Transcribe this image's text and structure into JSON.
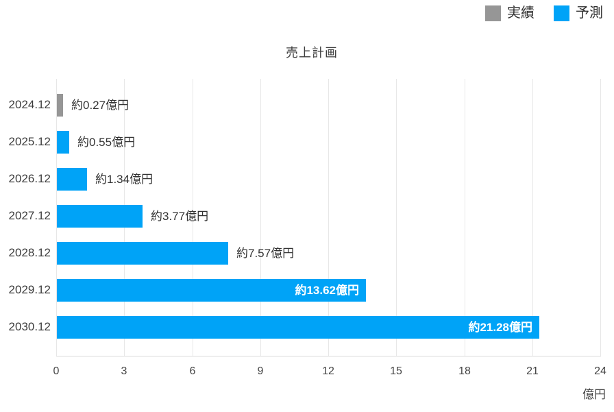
{
  "legend": {
    "items": [
      {
        "label": "実績",
        "color": "#969696"
      },
      {
        "label": "予測",
        "color": "#00a3f7"
      }
    ]
  },
  "chart_data": {
    "type": "bar",
    "orientation": "horizontal",
    "title": "売上計画",
    "unit_label": "億円",
    "xlim": [
      0,
      24
    ],
    "x_ticks": [
      0,
      3,
      6,
      9,
      12,
      15,
      18,
      21,
      24
    ],
    "grid": true,
    "legend_position": "top-right",
    "categories": [
      "2024.12",
      "2025.12",
      "2026.12",
      "2027.12",
      "2028.12",
      "2029.12",
      "2030.12"
    ],
    "series_colors": {
      "実績": "#969696",
      "予測": "#00a3f7"
    },
    "rows": [
      {
        "category": "2024.12",
        "series": "実績",
        "value": 0.27,
        "value_label": "約0.27億円",
        "label_inside": false
      },
      {
        "category": "2025.12",
        "series": "予測",
        "value": 0.55,
        "value_label": "約0.55億円",
        "label_inside": false
      },
      {
        "category": "2026.12",
        "series": "予測",
        "value": 1.34,
        "value_label": "約1.34億円",
        "label_inside": false
      },
      {
        "category": "2027.12",
        "series": "予測",
        "value": 3.77,
        "value_label": "約3.77億円",
        "label_inside": false
      },
      {
        "category": "2028.12",
        "series": "予測",
        "value": 7.57,
        "value_label": "約7.57億円",
        "label_inside": false
      },
      {
        "category": "2029.12",
        "series": "予測",
        "value": 13.62,
        "value_label": "約13.62億円",
        "label_inside": true
      },
      {
        "category": "2030.12",
        "series": "予測",
        "value": 21.28,
        "value_label": "約21.28億円",
        "label_inside": true
      }
    ],
    "colors": {
      "gridline": "#e7e7e7",
      "axis_line": "#d9d9d9",
      "actual_bar": "#969696",
      "forecast_bar": "#00a3f7"
    }
  }
}
